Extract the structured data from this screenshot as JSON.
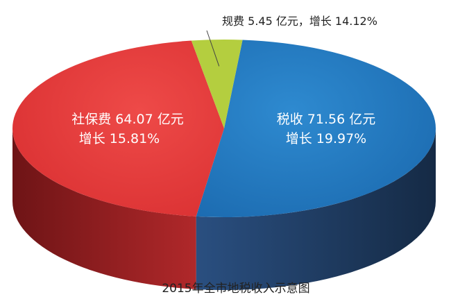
{
  "chart_data": {
    "type": "pie",
    "style": "3d",
    "title": "2015年全市地税收入示意图",
    "unit": "亿元",
    "slices": [
      {
        "name": "税收",
        "value": 71.56,
        "growth": "19.97%",
        "color": "#1f75bb",
        "side_color": "#1c3557",
        "label_line1": "税收 71.56 亿元",
        "label_line2": "增长 19.97%"
      },
      {
        "name": "规费",
        "value": 5.45,
        "growth": "14.12%",
        "color": "#b4ce3f",
        "side_color": "#7f9222",
        "label_line1": "规费 5.45 亿元，增长 14.12%",
        "label_line2": ""
      },
      {
        "name": "社保费",
        "value": 64.07,
        "growth": "15.81%",
        "color": "#e8393a",
        "side_color": "#7e1c1e",
        "label_line1": "社保费 64.07 亿元",
        "label_line2": "增长 15.81%"
      }
    ]
  }
}
